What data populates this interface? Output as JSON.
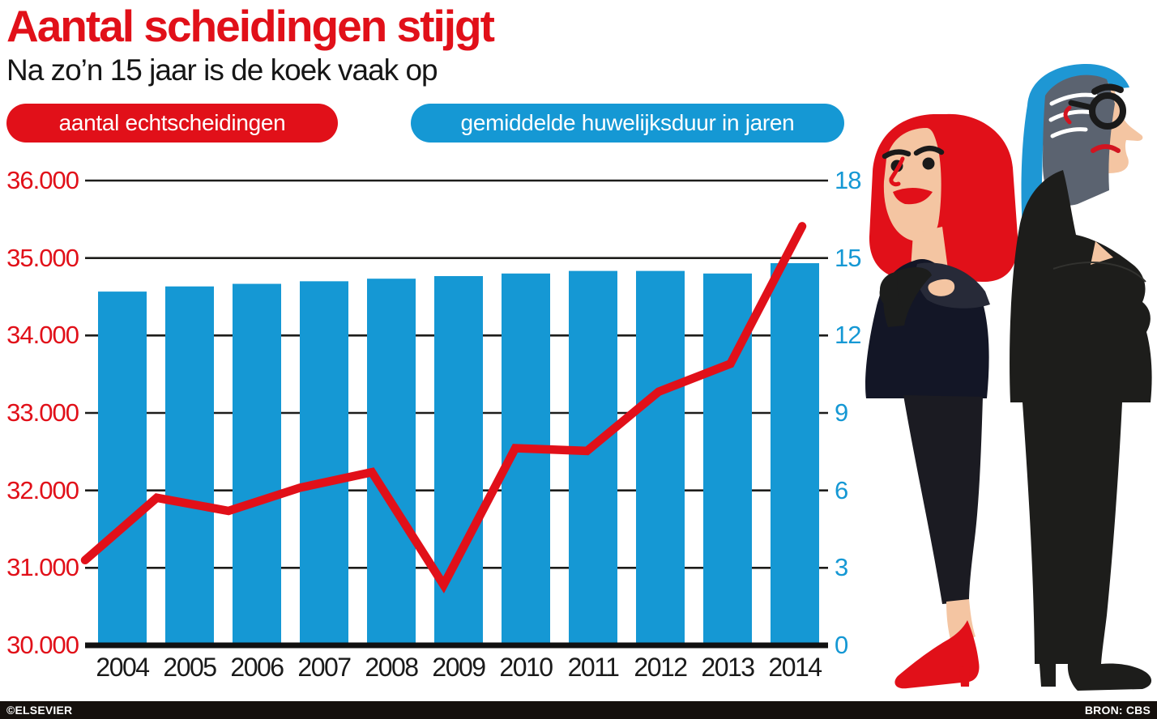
{
  "header": {
    "title": "Aantal scheidingen stijgt",
    "subtitle": "Na zo’n 15 jaar is de koek vaak op"
  },
  "legend": {
    "divorces_label": "aantal echtscheidingen",
    "duration_label": "gemiddelde huwelijksduur in jaren"
  },
  "footer": {
    "credit": "©ELSEVIER",
    "source": "BRON: CBS"
  },
  "colors": {
    "red": "#e11019",
    "blue": "#1598d4",
    "grid": "#1d1d1b",
    "skin": "#f4c5a2",
    "suit_black": "#1d1d1b",
    "hair_gray": "#5b6370",
    "footer_bg": "#15100d"
  },
  "chart_data": {
    "type": "bar+line",
    "title": "Aantal scheidingen stijgt",
    "subtitle": "Na zo’n 15 jaar is de koek vaak op",
    "categories": [
      "2004",
      "2005",
      "2006",
      "2007",
      "2008",
      "2009",
      "2010",
      "2011",
      "2012",
      "2013",
      "2014"
    ],
    "series": [
      {
        "name": "aantal echtscheidingen",
        "type": "line",
        "axis": "left",
        "color": "#e11019",
        "values": [
          31100,
          31905,
          31735,
          32035,
          32235,
          30780,
          32545,
          32510,
          33275,
          33635,
          35410
        ]
      },
      {
        "name": "gemiddelde huwelijksduur in jaren",
        "type": "bar",
        "axis": "right",
        "color": "#1598d4",
        "values": [
          13.7,
          13.9,
          14.0,
          14.1,
          14.2,
          14.3,
          14.4,
          14.5,
          14.5,
          14.4,
          14.8
        ]
      }
    ],
    "left_axis": {
      "min": 30000,
      "max": 36000,
      "step": 1000,
      "tick_labels": [
        "30.000",
        "31.000",
        "32.000",
        "33.000",
        "34.000",
        "35.000",
        "36.000"
      ],
      "color": "#e11019"
    },
    "right_axis": {
      "min": 0,
      "max": 18,
      "step": 3,
      "tick_labels": [
        "0",
        "3",
        "6",
        "9",
        "12",
        "15",
        "18"
      ],
      "color": "#1598d4"
    },
    "grid": true,
    "legend_position": "top"
  }
}
